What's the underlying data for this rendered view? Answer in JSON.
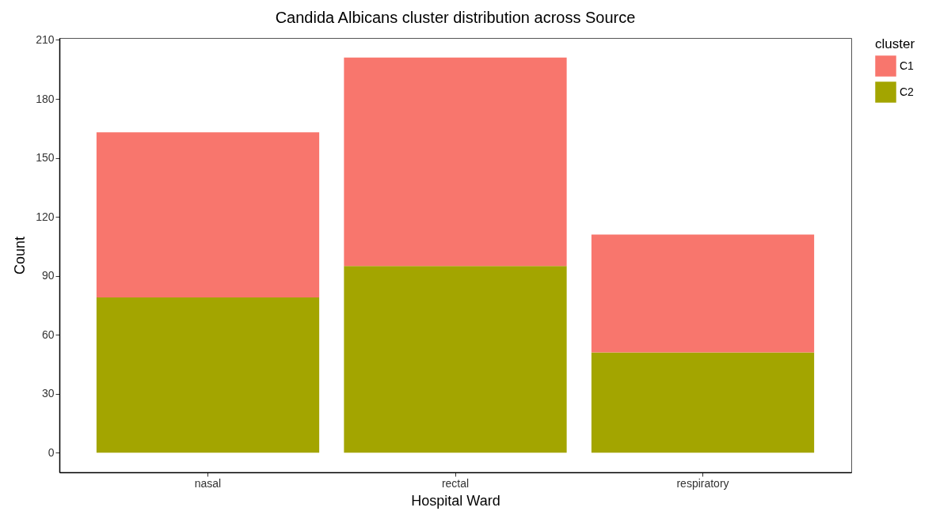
{
  "chart_data": {
    "type": "bar",
    "title": "Candida Albicans cluster distribution across Source",
    "xlabel": "Hospital Ward",
    "ylabel": "Count",
    "legend_title": "cluster",
    "categories": [
      "nasal",
      "rectal",
      "respiratory"
    ],
    "stacked": true,
    "series": [
      {
        "name": "C2",
        "color": "#a3a500",
        "values": [
          79,
          95,
          51
        ]
      },
      {
        "name": "C1",
        "color": "#f8766d",
        "values": [
          84,
          106,
          60
        ]
      }
    ],
    "ylim": [
      -10,
      211
    ],
    "yticks": [
      0,
      30,
      60,
      90,
      120,
      150,
      180,
      210
    ],
    "grid": false,
    "legend": "right"
  }
}
